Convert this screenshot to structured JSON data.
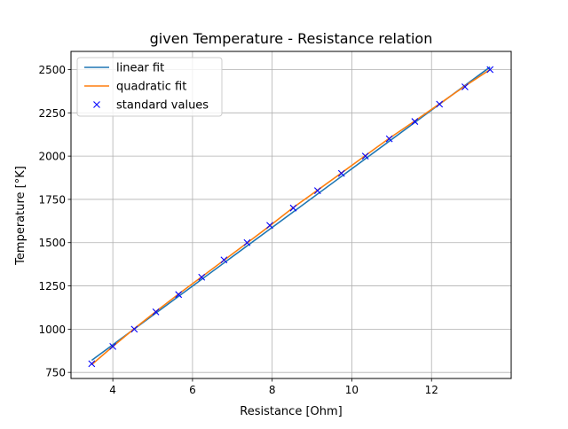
{
  "chart_data": {
    "type": "line",
    "title": "given Temperature - Resistance relation",
    "xlabel": "Resistance [Ohm]",
    "ylabel": "Temperature [°K]",
    "xlim": [
      2.95,
      14.0
    ],
    "ylim": [
      715,
      2605
    ],
    "xticks": [
      4,
      6,
      8,
      10,
      12
    ],
    "xtick_labels": [
      "4",
      "6",
      "8",
      "10",
      "12"
    ],
    "yticks": [
      750,
      1000,
      1250,
      1500,
      1750,
      2000,
      2250,
      2500
    ],
    "ytick_labels": [
      "750",
      "1000",
      "1250",
      "1500",
      "1750",
      "2000",
      "2250",
      "2500"
    ],
    "grid": true,
    "legend_position": "top-left",
    "series": [
      {
        "name": "linear fit",
        "kind": "line",
        "color": "#1f77b4",
        "x": [
          3.47,
          13.47
        ],
        "y": [
          820,
          2515
        ]
      },
      {
        "name": "quadratic fit",
        "kind": "line",
        "color": "#ff7f0e",
        "x": [
          3.47,
          4.0,
          4.54,
          5.08,
          5.65,
          6.23,
          6.79,
          7.37,
          7.94,
          8.53,
          9.14,
          9.74,
          10.34,
          10.94,
          11.58,
          12.2,
          12.84,
          13.47
        ],
        "y": [
          795,
          900,
          1003,
          1102,
          1203,
          1302,
          1398,
          1498,
          1597,
          1703,
          1803,
          1903,
          2003,
          2103,
          2203,
          2302,
          2405,
          2500
        ]
      },
      {
        "name": "standard values",
        "kind": "marker",
        "color": "#0000ff",
        "x": [
          3.47,
          4.0,
          4.54,
          5.08,
          5.65,
          6.23,
          6.79,
          7.37,
          7.94,
          8.53,
          9.14,
          9.74,
          10.34,
          10.94,
          11.58,
          12.2,
          12.84,
          13.47
        ],
        "y": [
          800,
          900,
          1000,
          1100,
          1200,
          1300,
          1400,
          1500,
          1600,
          1700,
          1800,
          1900,
          2000,
          2100,
          2200,
          2300,
          2400,
          2500
        ]
      }
    ]
  }
}
